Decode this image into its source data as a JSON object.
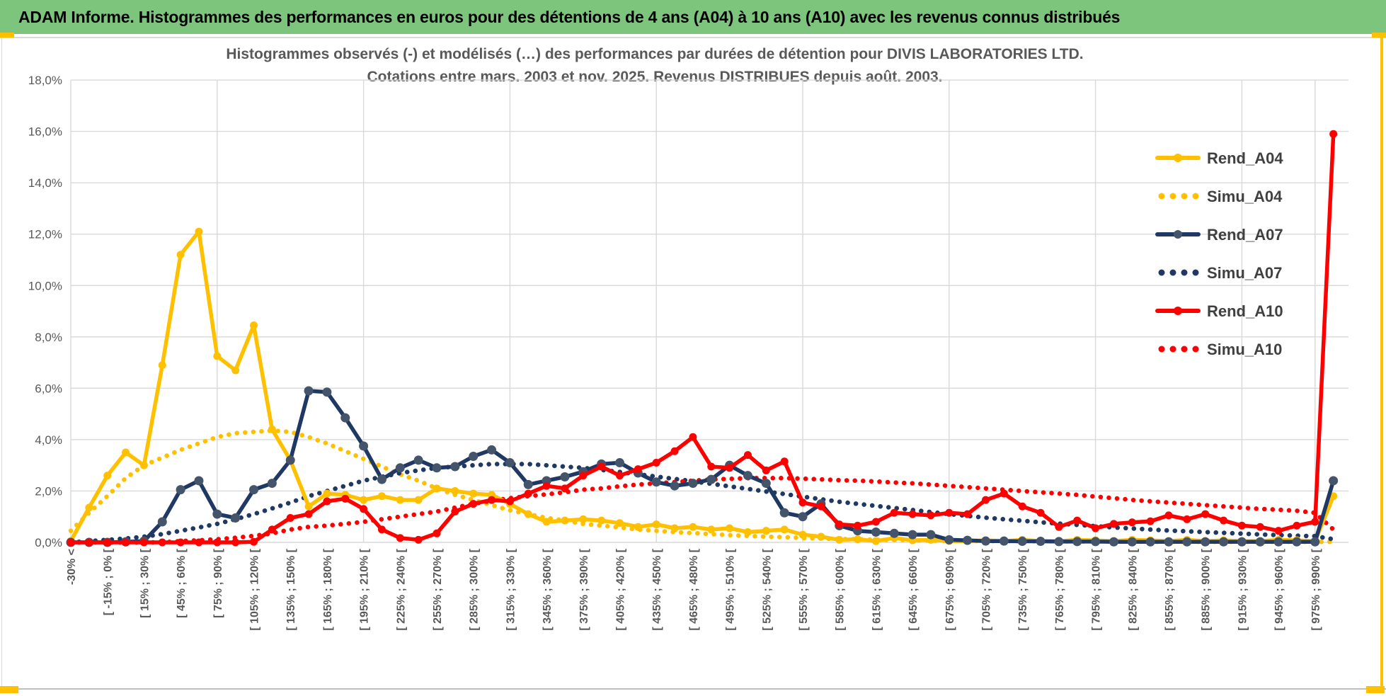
{
  "header": {
    "title": "ADAM Informe. Histogrammes des performances en euros pour des détentions de 4 ans (A04) à 10 ans (A10) avec les revenus connus distribués",
    "bg_color": "#7DC57D",
    "accent_color": "#FFC000"
  },
  "chart_data": {
    "type": "line",
    "title": "Histogrammes observés (-) et modélisés (…) des performances par durées de détention pour DIVIS LABORATORIES LTD.",
    "subtitle": "Cotations entre mars. 2003 et nov. 2025.  Revenus DISTRIBUES depuis août. 2003.",
    "ylabel_format": "percent_fr",
    "ylim": [
      0,
      18
    ],
    "ytick_step": 2,
    "y_tick_labels": [
      "0,0%",
      "2,0%",
      "4,0%",
      "6,0%",
      "8,0%",
      "10,0%",
      "12,0%",
      "14,0%",
      "16,0%",
      "18,0%"
    ],
    "num_bins": 70,
    "x_tick_labels_even_bins": [
      "-30% <",
      "[ -15% ; 0% [",
      "[ 15% ; 30% [",
      "[ 45% ; 60% [",
      "[ 75% ; 90% [",
      "[ 105% ; 120% [",
      "[ 135% ; 150% [",
      "[ 165% ; 180% [",
      "[ 195% ; 210% [",
      "[ 225% ; 240% [",
      "[ 255% ; 270% [",
      "[ 285% ; 300% [",
      "[ 315% ; 330% [",
      "[ 345% ; 360% [",
      "[ 375% ; 390% [",
      "[ 405% ; 420% [",
      "[ 435% ; 450% [",
      "[ 465% ; 480% [",
      "[ 495% ; 510% [",
      "[ 525% ; 540% [",
      "[ 555% ; 570% [",
      "[ 585% ; 600% [",
      "[ 615% ; 630% [",
      "[ 645% ; 660% [",
      "[ 675% ; 690% [",
      "[ 705% ; 720% [",
      "[ 735% ; 750% [",
      "[ 765% ; 780% [",
      "[ 795% ; 810% [",
      "[ 825% ; 840% [",
      "[ 855% ; 870% [",
      "[ 885% ; 900% [",
      "[ 915% ; 930% [",
      "[ 945% ; 960% [",
      "[ 975% ; 990% ["
    ],
    "x_gridline_bins": [
      0,
      8,
      16,
      24,
      32,
      40,
      48,
      56,
      64,
      68
    ],
    "grid": true,
    "legend_position": "upper-right",
    "axis_text_color": "#595959",
    "grid_color": "#d9d9d9",
    "legend_text_color": "#404040",
    "series": [
      {
        "name": "Rend_A04",
        "style": "solid",
        "color": "#FFC000",
        "marker_color": "#FFC000",
        "values": [
          0.05,
          1.35,
          2.6,
          3.5,
          3.0,
          6.9,
          11.2,
          12.1,
          7.25,
          6.7,
          8.45,
          4.4,
          3.2,
          1.4,
          1.9,
          1.85,
          1.65,
          1.8,
          1.65,
          1.65,
          2.1,
          2.0,
          1.9,
          1.85,
          1.5,
          1.1,
          0.8,
          0.85,
          0.9,
          0.85,
          0.75,
          0.6,
          0.7,
          0.55,
          0.6,
          0.5,
          0.55,
          0.4,
          0.45,
          0.5,
          0.3,
          0.22,
          0.1,
          0.12,
          0.05,
          0.17,
          0.08,
          0.1,
          0.05,
          0.05,
          0.08,
          0.05,
          0.1,
          0.05,
          0.05,
          0.1,
          0.08,
          0.05,
          0.1,
          0.08,
          0.05,
          0.1,
          0.05,
          0.08,
          0.05,
          0.05,
          0.1,
          0.08,
          0.05,
          1.8
        ]
      },
      {
        "name": "Simu_A04",
        "style": "dotted",
        "color": "#FFC000",
        "marker_color": "#FFC000",
        "values": [
          0.45,
          1.15,
          1.8,
          2.5,
          3.0,
          3.3,
          3.6,
          3.85,
          4.1,
          4.25,
          4.3,
          4.35,
          4.3,
          4.1,
          3.85,
          3.55,
          3.25,
          2.95,
          2.65,
          2.4,
          2.1,
          1.85,
          1.65,
          1.45,
          1.25,
          1.1,
          0.95,
          0.85,
          0.72,
          0.65,
          0.58,
          0.5,
          0.45,
          0.4,
          0.36,
          0.32,
          0.28,
          0.25,
          0.22,
          0.2,
          0.17,
          0.15,
          0.13,
          0.12,
          0.1,
          0.09,
          0.08,
          0.07,
          0.06,
          0.06,
          0.05,
          0.05,
          0.04,
          0.04,
          0.04,
          0.03,
          0.03,
          0.03,
          0.03,
          0.02,
          0.02,
          0.02,
          0.02,
          0.02,
          0.02,
          0.02,
          0.02,
          0.02,
          0.02,
          0.02
        ]
      },
      {
        "name": "Rend_A07",
        "style": "solid",
        "color": "#1F3864",
        "marker_color": "#44546A",
        "values": [
          0,
          0,
          0,
          0.02,
          0.05,
          0.8,
          2.05,
          2.4,
          1.1,
          0.95,
          2.05,
          2.3,
          3.2,
          5.9,
          5.85,
          4.85,
          3.75,
          2.45,
          2.9,
          3.2,
          2.9,
          2.95,
          3.35,
          3.6,
          3.1,
          2.25,
          2.4,
          2.55,
          2.75,
          3.05,
          3.1,
          2.7,
          2.35,
          2.2,
          2.3,
          2.45,
          3.0,
          2.6,
          2.3,
          1.15,
          1.0,
          1.5,
          0.65,
          0.45,
          0.4,
          0.35,
          0.3,
          0.3,
          0.1,
          0.08,
          0.05,
          0.05,
          0.04,
          0.04,
          0.03,
          0.03,
          0.03,
          0.02,
          0.02,
          0.02,
          0.02,
          0.02,
          0.02,
          0.02,
          0.02,
          0.02,
          0.02,
          0.02,
          0.02,
          2.4
        ]
      },
      {
        "name": "Simu_A07",
        "style": "dotted",
        "color": "#1F3864",
        "marker_color": "#1F3864",
        "values": [
          0.0,
          0.05,
          0.1,
          0.15,
          0.22,
          0.32,
          0.45,
          0.58,
          0.72,
          0.9,
          1.1,
          1.32,
          1.55,
          1.8,
          2.0,
          2.2,
          2.4,
          2.55,
          2.7,
          2.8,
          2.9,
          2.95,
          3.0,
          3.05,
          3.05,
          3.05,
          3.0,
          2.95,
          2.9,
          2.82,
          2.74,
          2.65,
          2.56,
          2.47,
          2.38,
          2.28,
          2.18,
          2.08,
          1.98,
          1.88,
          1.78,
          1.68,
          1.58,
          1.5,
          1.42,
          1.34,
          1.26,
          1.18,
          1.1,
          1.03,
          0.96,
          0.9,
          0.84,
          0.78,
          0.73,
          0.68,
          0.63,
          0.58,
          0.54,
          0.5,
          0.46,
          0.43,
          0.4,
          0.37,
          0.34,
          0.31,
          0.28,
          0.26,
          0.24,
          0.12
        ]
      },
      {
        "name": "Rend_A10",
        "style": "solid",
        "color": "#FF0000",
        "marker_color": "#FF0000",
        "values": [
          0,
          0,
          0,
          0,
          0,
          0,
          0,
          0,
          0,
          0,
          0.02,
          0.5,
          0.95,
          1.1,
          1.6,
          1.7,
          1.3,
          0.5,
          0.17,
          0.1,
          0.35,
          1.2,
          1.5,
          1.65,
          1.6,
          1.9,
          2.2,
          2.1,
          2.6,
          2.95,
          2.6,
          2.85,
          3.1,
          3.55,
          4.1,
          2.95,
          2.9,
          3.4,
          2.8,
          3.15,
          1.55,
          1.4,
          0.7,
          0.65,
          0.8,
          1.15,
          1.1,
          1.05,
          1.15,
          1.1,
          1.65,
          1.9,
          1.4,
          1.15,
          0.6,
          0.85,
          0.55,
          0.72,
          0.78,
          0.82,
          1.05,
          0.9,
          1.1,
          0.85,
          0.65,
          0.6,
          0.45,
          0.65,
          0.8,
          15.9
        ]
      },
      {
        "name": "Simu_A10",
        "style": "dotted",
        "color": "#FF0000",
        "marker_color": "#FF0000",
        "values": [
          0,
          0,
          0,
          0,
          0,
          0,
          0.05,
          0.08,
          0.12,
          0.18,
          0.25,
          0.35,
          0.5,
          0.6,
          0.65,
          0.72,
          0.8,
          0.9,
          1.0,
          1.1,
          1.2,
          1.35,
          1.5,
          1.62,
          1.72,
          1.8,
          1.87,
          1.95,
          2.05,
          2.1,
          2.18,
          2.25,
          2.3,
          2.35,
          2.4,
          2.45,
          2.47,
          2.5,
          2.5,
          2.5,
          2.48,
          2.45,
          2.42,
          2.4,
          2.37,
          2.33,
          2.3,
          2.25,
          2.2,
          2.15,
          2.1,
          2.05,
          2.0,
          1.95,
          1.9,
          1.85,
          1.78,
          1.72,
          1.65,
          1.6,
          1.55,
          1.5,
          1.45,
          1.4,
          1.35,
          1.3,
          1.27,
          1.23,
          1.15,
          0.5
        ]
      }
    ]
  }
}
